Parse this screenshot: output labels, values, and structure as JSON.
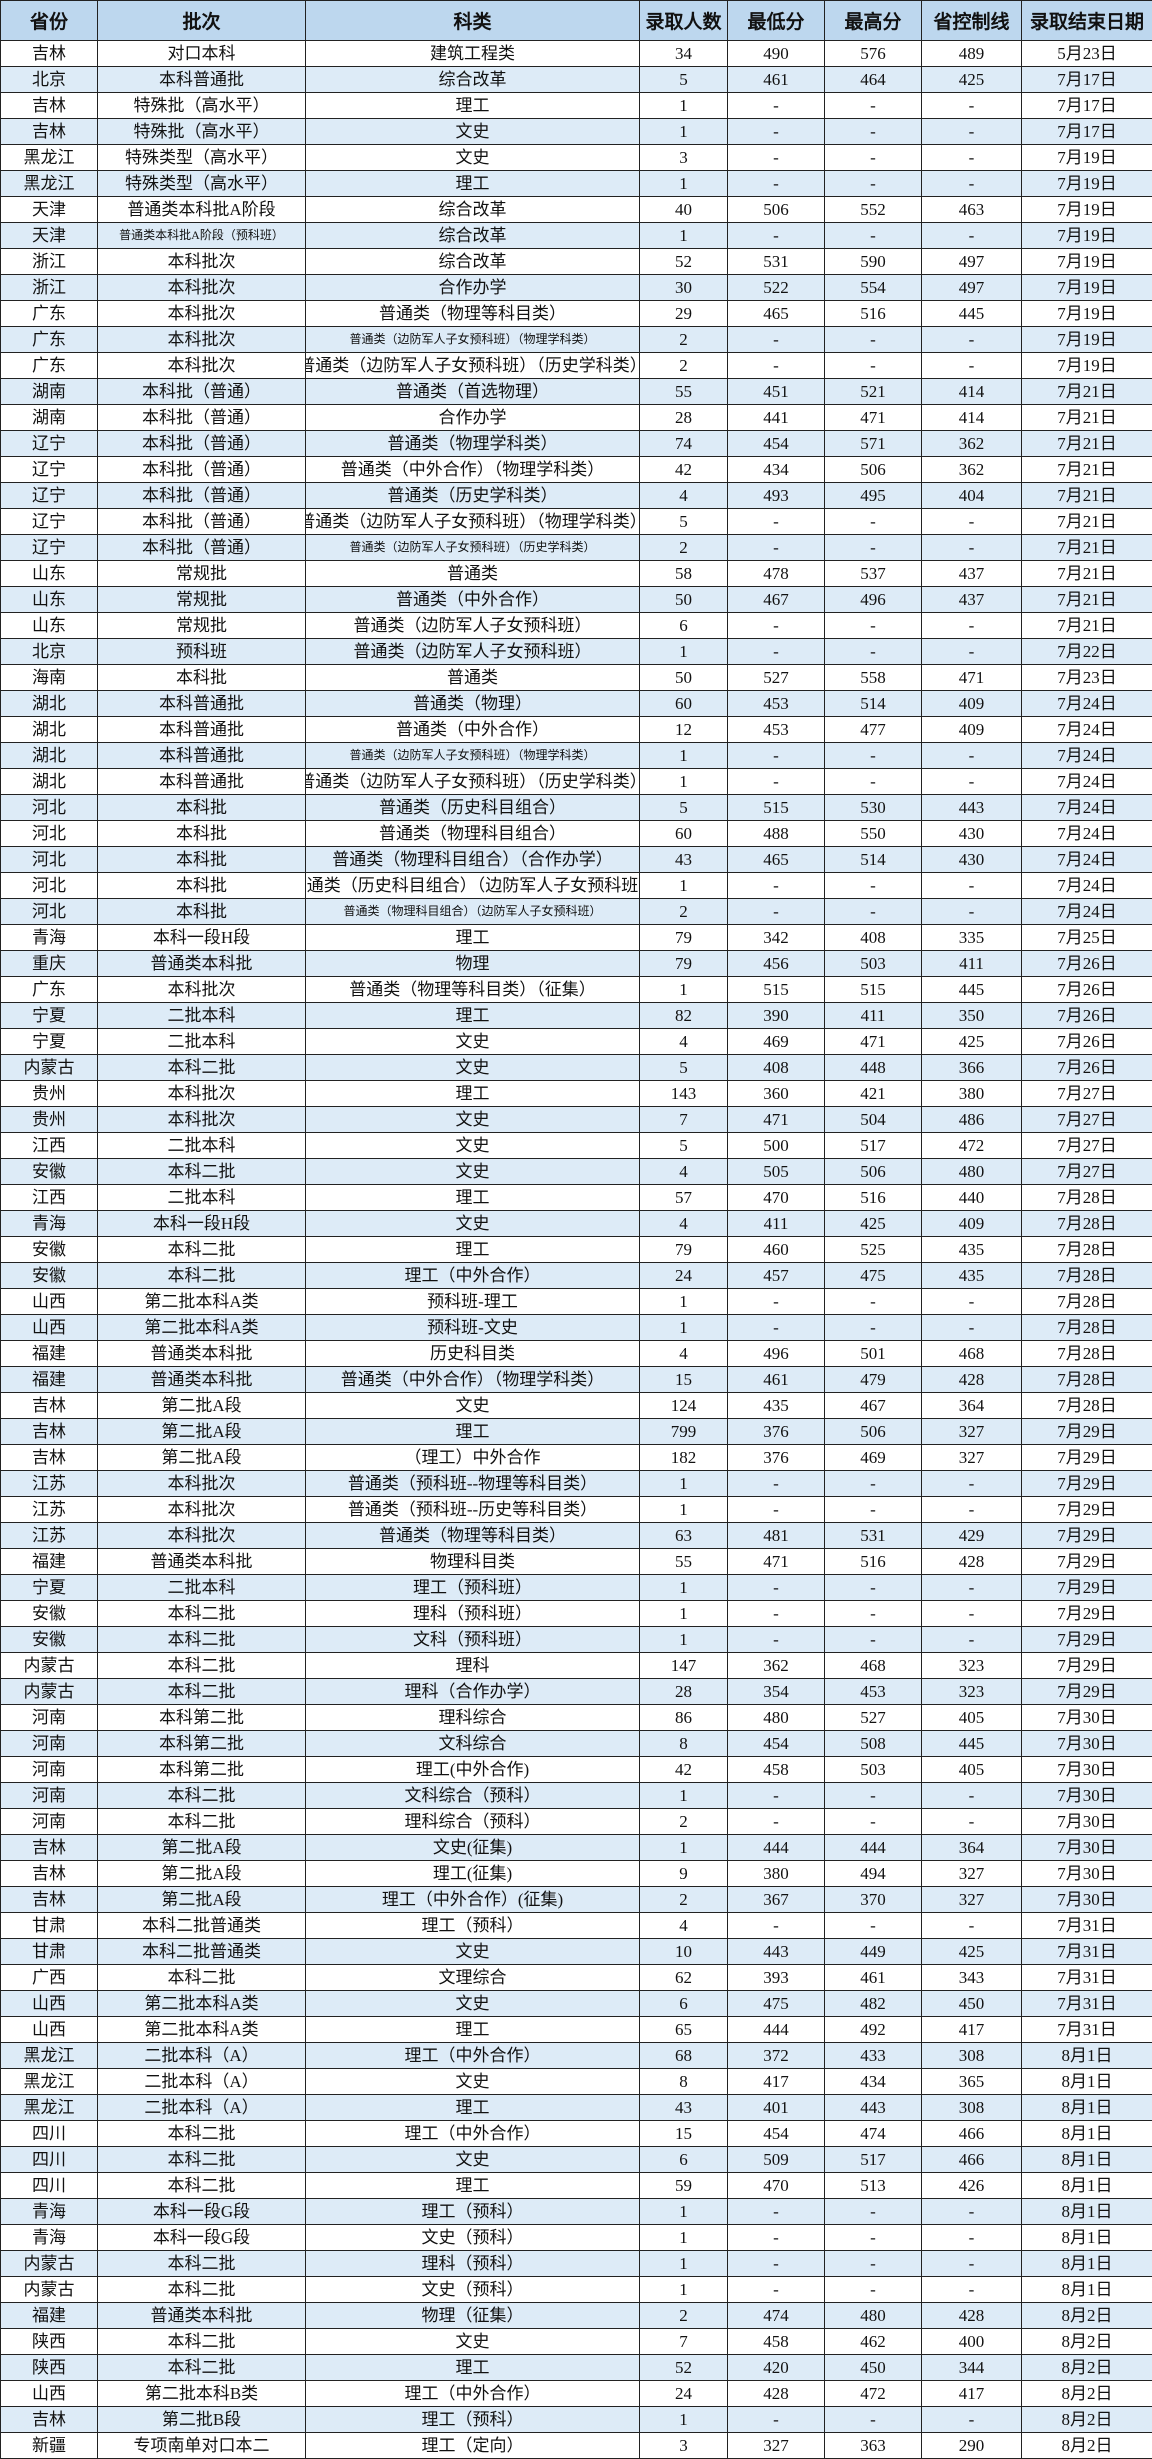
{
  "headers": [
    "省份",
    "批次",
    "科类",
    "录取人数",
    "最低分",
    "最高分",
    "省控制线",
    "录取结束日期"
  ],
  "rows": [
    [
      "吉林",
      "对口本科",
      "建筑工程类",
      "34",
      "490",
      "576",
      "489",
      "5月23日"
    ],
    [
      "北京",
      "本科普通批",
      "综合改革",
      "5",
      "461",
      "464",
      "425",
      "7月17日"
    ],
    [
      "吉林",
      "特殊批（高水平）",
      "理工",
      "1",
      "-",
      "-",
      "-",
      "7月17日"
    ],
    [
      "吉林",
      "特殊批（高水平）",
      "文史",
      "1",
      "-",
      "-",
      "-",
      "7月17日"
    ],
    [
      "黑龙江",
      "特殊类型（高水平）",
      "文史",
      "3",
      "-",
      "-",
      "-",
      "7月19日"
    ],
    [
      "黑龙江",
      "特殊类型（高水平）",
      "理工",
      "1",
      "-",
      "-",
      "-",
      "7月19日"
    ],
    [
      "天津",
      "普通类本科批A阶段",
      "综合改革",
      "40",
      "506",
      "552",
      "463",
      "7月19日"
    ],
    [
      "天津",
      "普通类本科批A阶段（预科班）",
      "综合改革",
      "1",
      "-",
      "-",
      "-",
      "7月19日"
    ],
    [
      "浙江",
      "本科批次",
      "综合改革",
      "52",
      "531",
      "590",
      "497",
      "7月19日"
    ],
    [
      "浙江",
      "本科批次",
      "合作办学",
      "30",
      "522",
      "554",
      "497",
      "7月19日"
    ],
    [
      "广东",
      "本科批次",
      "普通类（物理等科目类）",
      "29",
      "465",
      "516",
      "445",
      "7月19日"
    ],
    [
      "广东",
      "本科批次",
      "普通类（边防军人子女预科班）（物理学科类）",
      "2",
      "-",
      "-",
      "-",
      "7月19日"
    ],
    [
      "广东",
      "本科批次",
      "普通类（边防军人子女预科班）（历史学科类）",
      "2",
      "-",
      "-",
      "-",
      "7月19日"
    ],
    [
      "湖南",
      "本科批（普通）",
      "普通类（首选物理）",
      "55",
      "451",
      "521",
      "414",
      "7月21日"
    ],
    [
      "湖南",
      "本科批（普通）",
      "合作办学",
      "28",
      "441",
      "471",
      "414",
      "7月21日"
    ],
    [
      "辽宁",
      "本科批（普通）",
      "普通类（物理学科类）",
      "74",
      "454",
      "571",
      "362",
      "7月21日"
    ],
    [
      "辽宁",
      "本科批（普通）",
      "普通类（中外合作）（物理学科类）",
      "42",
      "434",
      "506",
      "362",
      "7月21日"
    ],
    [
      "辽宁",
      "本科批（普通）",
      "普通类（历史学科类）",
      "4",
      "493",
      "495",
      "404",
      "7月21日"
    ],
    [
      "辽宁",
      "本科批（普通）",
      "普通类（边防军人子女预科班）（物理学科类）",
      "5",
      "-",
      "-",
      "-",
      "7月21日"
    ],
    [
      "辽宁",
      "本科批（普通）",
      "普通类（边防军人子女预科班）（历史学科类）",
      "2",
      "-",
      "-",
      "-",
      "7月21日"
    ],
    [
      "山东",
      "常规批",
      "普通类",
      "58",
      "478",
      "537",
      "437",
      "7月21日"
    ],
    [
      "山东",
      "常规批",
      "普通类（中外合作）",
      "50",
      "467",
      "496",
      "437",
      "7月21日"
    ],
    [
      "山东",
      "常规批",
      "普通类（边防军人子女预科班）",
      "6",
      "-",
      "-",
      "-",
      "7月21日"
    ],
    [
      "北京",
      "预科班",
      "普通类（边防军人子女预科班）",
      "1",
      "-",
      "-",
      "-",
      "7月22日"
    ],
    [
      "海南",
      "本科批",
      "普通类",
      "50",
      "527",
      "558",
      "471",
      "7月23日"
    ],
    [
      "湖北",
      "本科普通批",
      "普通类（物理）",
      "60",
      "453",
      "514",
      "409",
      "7月24日"
    ],
    [
      "湖北",
      "本科普通批",
      "普通类（中外合作）",
      "12",
      "453",
      "477",
      "409",
      "7月24日"
    ],
    [
      "湖北",
      "本科普通批",
      "普通类（边防军人子女预科班）（物理学科类）",
      "1",
      "-",
      "-",
      "-",
      "7月24日"
    ],
    [
      "湖北",
      "本科普通批",
      "普通类（边防军人子女预科班）（历史学科类）",
      "1",
      "-",
      "-",
      "-",
      "7月24日"
    ],
    [
      "河北",
      "本科批",
      "普通类（历史科目组合）",
      "5",
      "515",
      "530",
      "443",
      "7月24日"
    ],
    [
      "河北",
      "本科批",
      "普通类（物理科目组合）",
      "60",
      "488",
      "550",
      "430",
      "7月24日"
    ],
    [
      "河北",
      "本科批",
      "普通类（物理科目组合）（合作办学）",
      "43",
      "465",
      "514",
      "430",
      "7月24日"
    ],
    [
      "河北",
      "本科批",
      "普通类（历史科目组合）（边防军人子女预科班）",
      "1",
      "-",
      "-",
      "-",
      "7月24日"
    ],
    [
      "河北",
      "本科批",
      "普通类（物理科目组合）（边防军人子女预科班）",
      "2",
      "-",
      "-",
      "-",
      "7月24日"
    ],
    [
      "青海",
      "本科一段H段",
      "理工",
      "79",
      "342",
      "408",
      "335",
      "7月25日"
    ],
    [
      "重庆",
      "普通类本科批",
      "物理",
      "79",
      "456",
      "503",
      "411",
      "7月26日"
    ],
    [
      "广东",
      "本科批次",
      "普通类（物理等科目类）（征集）",
      "1",
      "515",
      "515",
      "445",
      "7月26日"
    ],
    [
      "宁夏",
      "二批本科",
      "理工",
      "82",
      "390",
      "411",
      "350",
      "7月26日"
    ],
    [
      "宁夏",
      "二批本科",
      "文史",
      "4",
      "469",
      "471",
      "425",
      "7月26日"
    ],
    [
      "内蒙古",
      "本科二批",
      "文史",
      "5",
      "408",
      "448",
      "366",
      "7月26日"
    ],
    [
      "贵州",
      "本科批次",
      "理工",
      "143",
      "360",
      "421",
      "380",
      "7月27日"
    ],
    [
      "贵州",
      "本科批次",
      "文史",
      "7",
      "471",
      "504",
      "486",
      "7月27日"
    ],
    [
      "江西",
      "二批本科",
      "文史",
      "5",
      "500",
      "517",
      "472",
      "7月27日"
    ],
    [
      "安徽",
      "本科二批",
      "文史",
      "4",
      "505",
      "506",
      "480",
      "7月27日"
    ],
    [
      "江西",
      "二批本科",
      "理工",
      "57",
      "470",
      "516",
      "440",
      "7月28日"
    ],
    [
      "青海",
      "本科一段H段",
      "文史",
      "4",
      "411",
      "425",
      "409",
      "7月28日"
    ],
    [
      "安徽",
      "本科二批",
      "理工",
      "79",
      "460",
      "525",
      "435",
      "7月28日"
    ],
    [
      "安徽",
      "本科二批",
      "理工（中外合作）",
      "24",
      "457",
      "475",
      "435",
      "7月28日"
    ],
    [
      "山西",
      "第二批本科A类",
      "预科班-理工",
      "1",
      "-",
      "-",
      "-",
      "7月28日"
    ],
    [
      "山西",
      "第二批本科A类",
      "预科班-文史",
      "1",
      "-",
      "-",
      "-",
      "7月28日"
    ],
    [
      "福建",
      "普通类本科批",
      "历史科目类",
      "4",
      "496",
      "501",
      "468",
      "7月28日"
    ],
    [
      "福建",
      "普通类本科批",
      "普通类（中外合作）（物理学科类）",
      "15",
      "461",
      "479",
      "428",
      "7月28日"
    ],
    [
      "吉林",
      "第二批A段",
      "文史",
      "124",
      "435",
      "467",
      "364",
      "7月28日"
    ],
    [
      "吉林",
      "第二批A段",
      "理工",
      "799",
      "376",
      "506",
      "327",
      "7月29日"
    ],
    [
      "吉林",
      "第二批A段",
      "（理工）中外合作",
      "182",
      "376",
      "469",
      "327",
      "7月29日"
    ],
    [
      "江苏",
      "本科批次",
      "普通类（预科班--物理等科目类）",
      "1",
      "-",
      "-",
      "-",
      "7月29日"
    ],
    [
      "江苏",
      "本科批次",
      "普通类（预科班--历史等科目类）",
      "1",
      "-",
      "-",
      "-",
      "7月29日"
    ],
    [
      "江苏",
      "本科批次",
      "普通类（物理等科目类）",
      "63",
      "481",
      "531",
      "429",
      "7月29日"
    ],
    [
      "福建",
      "普通类本科批",
      "物理科目类",
      "55",
      "471",
      "516",
      "428",
      "7月29日"
    ],
    [
      "宁夏",
      "二批本科",
      "理工（预科班）",
      "1",
      "-",
      "-",
      "-",
      "7月29日"
    ],
    [
      "安徽",
      "本科二批",
      "理科（预科班）",
      "1",
      "-",
      "-",
      "-",
      "7月29日"
    ],
    [
      "安徽",
      "本科二批",
      "文科（预科班）",
      "1",
      "-",
      "-",
      "-",
      "7月29日"
    ],
    [
      "内蒙古",
      "本科二批",
      "理科",
      "147",
      "362",
      "468",
      "323",
      "7月29日"
    ],
    [
      "内蒙古",
      "本科二批",
      "理科（合作办学）",
      "28",
      "354",
      "453",
      "323",
      "7月29日"
    ],
    [
      "河南",
      "本科第二批",
      "理科综合",
      "86",
      "480",
      "527",
      "405",
      "7月30日"
    ],
    [
      "河南",
      "本科第二批",
      "文科综合",
      "8",
      "454",
      "508",
      "445",
      "7月30日"
    ],
    [
      "河南",
      "本科第二批",
      "理工(中外合作)",
      "42",
      "458",
      "503",
      "405",
      "7月30日"
    ],
    [
      "河南",
      "本科二批",
      "文科综合（预科）",
      "1",
      "-",
      "-",
      "-",
      "7月30日"
    ],
    [
      "河南",
      "本科二批",
      "理科综合（预科）",
      "2",
      "-",
      "-",
      "-",
      "7月30日"
    ],
    [
      "吉林",
      "第二批A段",
      "文史(征集)",
      "1",
      "444",
      "444",
      "364",
      "7月30日"
    ],
    [
      "吉林",
      "第二批A段",
      "理工(征集)",
      "9",
      "380",
      "494",
      "327",
      "7月30日"
    ],
    [
      "吉林",
      "第二批A段",
      "理工（中外合作）(征集)",
      "2",
      "367",
      "370",
      "327",
      "7月30日"
    ],
    [
      "甘肃",
      "本科二批普通类",
      "理工（预科）",
      "4",
      "-",
      "-",
      "-",
      "7月31日"
    ],
    [
      "甘肃",
      "本科二批普通类",
      "文史",
      "10",
      "443",
      "449",
      "425",
      "7月31日"
    ],
    [
      "广西",
      "本科二批",
      "文理综合",
      "62",
      "393",
      "461",
      "343",
      "7月31日"
    ],
    [
      "山西",
      "第二批本科A类",
      "文史",
      "6",
      "475",
      "482",
      "450",
      "7月31日"
    ],
    [
      "山西",
      "第二批本科A类",
      "理工",
      "65",
      "444",
      "492",
      "417",
      "7月31日"
    ],
    [
      "黑龙江",
      "二批本科（A）",
      "理工（中外合作）",
      "68",
      "372",
      "433",
      "308",
      "8月1日"
    ],
    [
      "黑龙江",
      "二批本科（A）",
      "文史",
      "8",
      "417",
      "434",
      "365",
      "8月1日"
    ],
    [
      "黑龙江",
      "二批本科（A）",
      "理工",
      "43",
      "401",
      "443",
      "308",
      "8月1日"
    ],
    [
      "四川",
      "本科二批",
      "理工（中外合作）",
      "15",
      "454",
      "474",
      "466",
      "8月1日"
    ],
    [
      "四川",
      "本科二批",
      "文史",
      "6",
      "509",
      "517",
      "466",
      "8月1日"
    ],
    [
      "四川",
      "本科二批",
      "理工",
      "59",
      "470",
      "513",
      "426",
      "8月1日"
    ],
    [
      "青海",
      "本科一段G段",
      "理工（预科）",
      "1",
      "-",
      "-",
      "-",
      "8月1日"
    ],
    [
      "青海",
      "本科一段G段",
      "文史（预科）",
      "1",
      "-",
      "-",
      "-",
      "8月1日"
    ],
    [
      "内蒙古",
      "本科二批",
      "理科（预科）",
      "1",
      "-",
      "-",
      "-",
      "8月1日"
    ],
    [
      "内蒙古",
      "本科二批",
      "文史（预科）",
      "1",
      "-",
      "-",
      "-",
      "8月1日"
    ],
    [
      "福建",
      "普通类本科批",
      "物理（征集）",
      "2",
      "474",
      "480",
      "428",
      "8月2日"
    ],
    [
      "陕西",
      "本科二批",
      "文史",
      "7",
      "458",
      "462",
      "400",
      "8月2日"
    ],
    [
      "陕西",
      "本科二批",
      "理工",
      "52",
      "420",
      "450",
      "344",
      "8月2日"
    ],
    [
      "山西",
      "第二批本科B类",
      "理工（中外合作）",
      "24",
      "428",
      "472",
      "417",
      "8月2日"
    ],
    [
      "吉林",
      "第二批B段",
      "理工（预科）",
      "1",
      "-",
      "-",
      "-",
      "8月2日"
    ],
    [
      "新疆",
      "专项南单对口本二",
      "理工（定向）",
      "3",
      "327",
      "363",
      "290",
      "8月2日"
    ]
  ],
  "colors": {
    "header_bg": "#bdd7ee",
    "stripe_bg": "#ddebf7",
    "grid": "#222222"
  }
}
